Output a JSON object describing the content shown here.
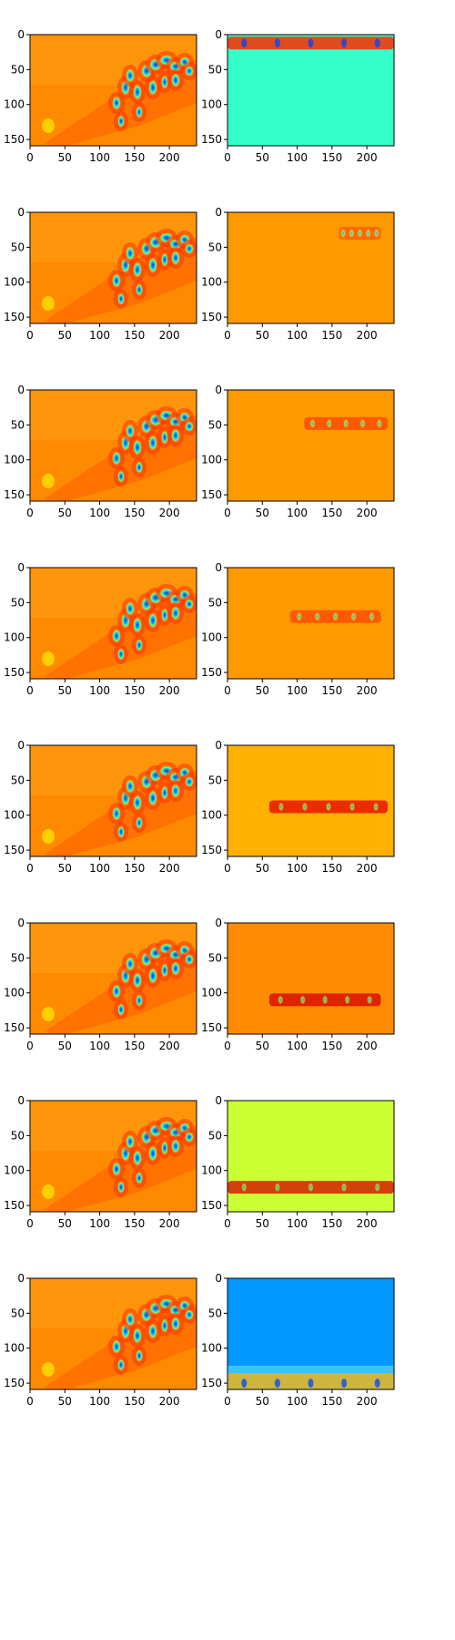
{
  "chart_data": {
    "type": "heatmap",
    "layout": {
      "rows": 8,
      "cols": 2
    },
    "colormap": "jet",
    "axes": {
      "xlim": [
        0,
        239
      ],
      "ylim": [
        159,
        0
      ],
      "xticks": [
        0,
        50,
        100,
        150,
        200
      ],
      "yticks": [
        0,
        50,
        100,
        150
      ],
      "grid": false
    },
    "columns": [
      {
        "role": "left",
        "description_free": true
      },
      {
        "role": "right"
      }
    ],
    "background_colors": {
      "left": "#ff8c00",
      "right": [
        "#33ffc8",
        "#ff9900",
        "#ff9900",
        "#ff9900",
        "#ffb000",
        "#ff8c00",
        "#ccff33",
        "#0099ff"
      ]
    },
    "right_band_rows_y": [
      12,
      30,
      48,
      70,
      88,
      110,
      124,
      150
    ],
    "right_band_x_extent": [
      [
        0,
        239
      ],
      [
        160,
        220
      ],
      [
        110,
        230
      ],
      [
        90,
        220
      ],
      [
        60,
        230
      ],
      [
        60,
        220
      ],
      [
        0,
        239
      ],
      [
        0,
        239
      ]
    ],
    "right_band_colors": [
      "#ff2a00",
      "#ff5500",
      "#ff4400",
      "#ff4400",
      "#e60000",
      "#d40000",
      "#d40000",
      "#ffb000"
    ]
  }
}
